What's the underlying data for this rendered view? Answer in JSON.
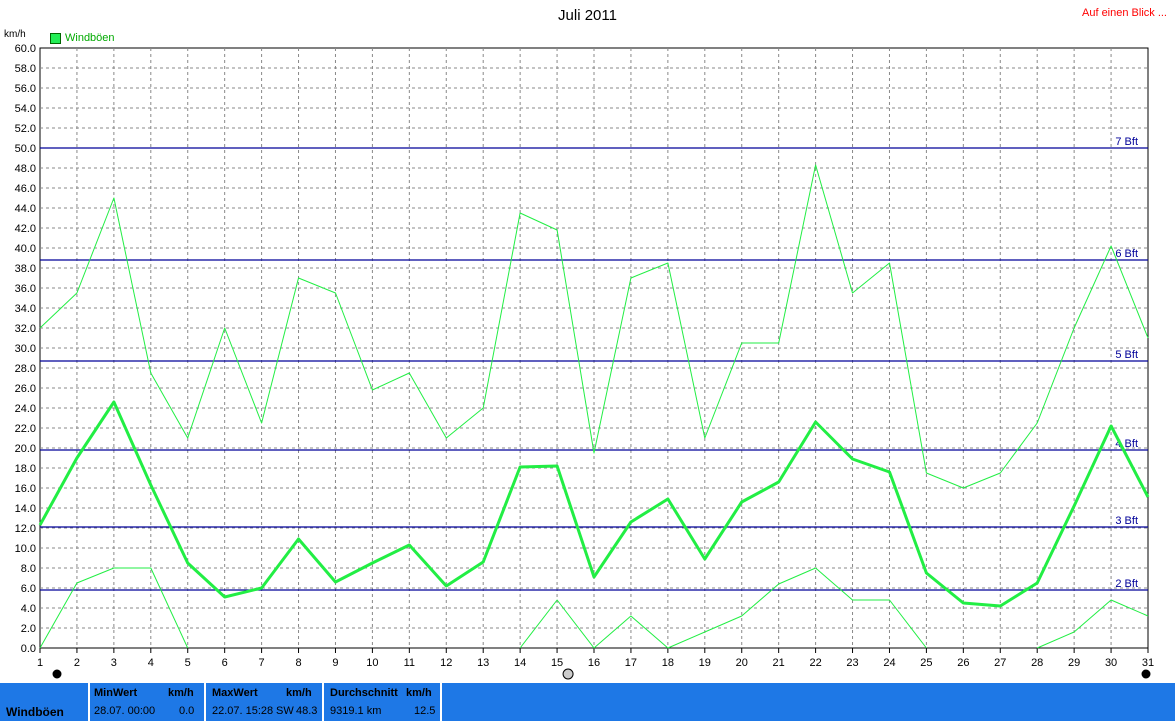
{
  "title": "Juli 2011",
  "top_link": "Auf einen Blick ...",
  "y_unit": "km/h",
  "legend_label": "Windböen",
  "colors": {
    "thick": "#22ee44",
    "thin": "#22ee44",
    "beaufort": "#000099",
    "grid": "#888888",
    "footer": "#1e78e6"
  },
  "chart_data": {
    "type": "line",
    "title": "Juli 2011",
    "ylabel": "km/h",
    "ylim": [
      0,
      60
    ],
    "ytick_step": 2,
    "x": [
      1,
      2,
      3,
      4,
      5,
      6,
      7,
      8,
      9,
      10,
      11,
      12,
      13,
      14,
      15,
      16,
      17,
      18,
      19,
      20,
      21,
      22,
      23,
      24,
      25,
      26,
      27,
      28,
      29,
      30,
      31
    ],
    "series": [
      {
        "name": "Windböen",
        "role": "avg",
        "values": [
          12.3,
          19.0,
          24.6,
          16.3,
          8.5,
          5.1,
          6.0,
          10.9,
          6.6,
          8.5,
          10.3,
          6.2,
          8.6,
          18.1,
          18.2,
          7.1,
          12.6,
          14.9,
          8.9,
          14.6,
          16.6,
          22.6,
          18.9,
          17.6,
          7.5,
          4.5,
          4.2,
          6.5,
          14.2,
          22.2,
          15.1
        ]
      },
      {
        "role": "max",
        "values": [
          32.0,
          35.5,
          45.0,
          27.5,
          21.0,
          32.0,
          22.5,
          37.0,
          35.5,
          25.8,
          27.5,
          21.0,
          24.0,
          43.5,
          41.8,
          19.5,
          37.0,
          38.5,
          21.0,
          30.5,
          30.5,
          48.3,
          35.5,
          38.5,
          17.5,
          16.0,
          17.5,
          22.5,
          32.0,
          40.2,
          31.0
        ]
      },
      {
        "role": "min",
        "values": [
          0,
          6.5,
          8.0,
          8.0,
          0,
          null,
          null,
          null,
          null,
          null,
          null,
          null,
          null,
          0,
          4.8,
          0,
          3.2,
          0,
          1.6,
          3.2,
          6.4,
          8.0,
          4.8,
          4.8,
          0,
          null,
          null,
          0,
          1.6,
          4.8,
          3.2
        ]
      }
    ],
    "beaufort_lines": [
      {
        "label": "2 Bft",
        "value": 5.8
      },
      {
        "label": "3 Bft",
        "value": 12.1
      },
      {
        "label": "4 Bft",
        "value": 19.8
      },
      {
        "label": "5 Bft",
        "value": 28.7
      },
      {
        "label": "6 Bft",
        "value": 38.8
      },
      {
        "label": "7 Bft",
        "value": 50.0
      }
    ],
    "grid": true
  },
  "footer": {
    "series_name": "Windböen",
    "min_head": "MinWert",
    "min_unit": "km/h",
    "min_date": "28.07.  00:00",
    "min_value": "0.0",
    "max_head": "MaxWert",
    "max_unit": "km/h",
    "max_date": "22.07.  15:28",
    "max_dir": "SW",
    "max_value": "48.3",
    "avg_head": "Durchschnitt",
    "avg_unit": "km/h",
    "avg_km": "9319.1 km",
    "avg_value": "12.5"
  }
}
